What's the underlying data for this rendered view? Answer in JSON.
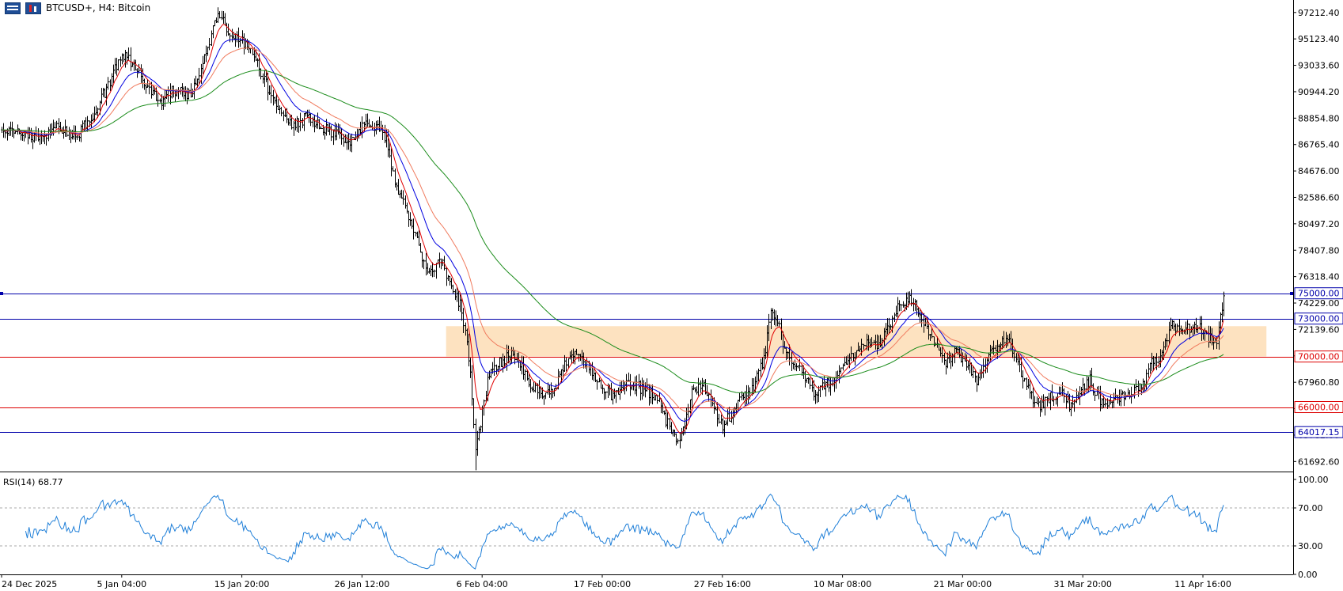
{
  "header": {
    "title": "BTCUSD+, H4:  Bitcoin",
    "menu_icon": "menu-icon",
    "trade_icon": "one-click-trading-icon"
  },
  "chart_data": {
    "type": "candlestick",
    "symbol": "BTCUSD+",
    "timeframe": "H4",
    "description": "Bitcoin",
    "price_axis": {
      "ylim": [
        60900,
        98200
      ],
      "ticks": [
        "97212.40",
        "95123.40",
        "93033.60",
        "90944.20",
        "88854.80",
        "86765.40",
        "84676.00",
        "82586.60",
        "80497.20",
        "78407.80",
        "76318.40",
        "74229.00",
        "72139.60",
        "70050.20",
        "67960.80",
        "65871.40",
        "63782.00",
        "61692.60"
      ]
    },
    "time_axis": {
      "labels": [
        "24 Dec 2025",
        "5 Jan 04:00",
        "15 Jan 20:00",
        "26 Jan 12:00",
        "6 Feb 04:00",
        "17 Feb 00:00",
        "27 Feb 16:00",
        "10 Mar 08:00",
        "21 Mar 00:00",
        "31 Mar 20:00",
        "11 Apr 16:00"
      ],
      "bar_index": [
        0,
        70,
        140,
        210,
        280,
        350,
        420,
        490,
        560,
        630,
        700
      ]
    },
    "price_path": [
      [
        0,
        87800
      ],
      [
        12,
        87600
      ],
      [
        22,
        87200
      ],
      [
        32,
        88000
      ],
      [
        44,
        87500
      ],
      [
        55,
        89500
      ],
      [
        62,
        91500
      ],
      [
        70,
        94000
      ],
      [
        78,
        92800
      ],
      [
        84,
        91300
      ],
      [
        92,
        90200
      ],
      [
        100,
        91100
      ],
      [
        108,
        90600
      ],
      [
        114,
        91600
      ],
      [
        120,
        94500
      ],
      [
        126,
        97200
      ],
      [
        132,
        95600
      ],
      [
        138,
        95000
      ],
      [
        146,
        94300
      ],
      [
        152,
        92200
      ],
      [
        158,
        90200
      ],
      [
        164,
        89200
      ],
      [
        170,
        88200
      ],
      [
        178,
        89000
      ],
      [
        186,
        88100
      ],
      [
        194,
        87700
      ],
      [
        202,
        86800
      ],
      [
        210,
        88200
      ],
      [
        217,
        88300
      ],
      [
        224,
        87200
      ],
      [
        229,
        83800
      ],
      [
        235,
        81800
      ],
      [
        241,
        79400
      ],
      [
        246,
        77600
      ],
      [
        250,
        76600
      ],
      [
        256,
        77700
      ],
      [
        262,
        75500
      ],
      [
        268,
        73800
      ],
      [
        273,
        69000
      ],
      [
        276,
        62900
      ],
      [
        279,
        64800
      ],
      [
        284,
        68800
      ],
      [
        290,
        69500
      ],
      [
        296,
        70200
      ],
      [
        302,
        69400
      ],
      [
        308,
        67700
      ],
      [
        316,
        66700
      ],
      [
        322,
        67400
      ],
      [
        328,
        69400
      ],
      [
        334,
        70200
      ],
      [
        340,
        69500
      ],
      [
        348,
        67800
      ],
      [
        356,
        66800
      ],
      [
        362,
        67900
      ],
      [
        370,
        67600
      ],
      [
        376,
        67300
      ],
      [
        382,
        66600
      ],
      [
        388,
        64700
      ],
      [
        393,
        63300
      ],
      [
        398,
        64500
      ],
      [
        402,
        67400
      ],
      [
        408,
        67700
      ],
      [
        414,
        66500
      ],
      [
        420,
        64500
      ],
      [
        426,
        65700
      ],
      [
        432,
        66800
      ],
      [
        438,
        67700
      ],
      [
        444,
        69800
      ],
      [
        448,
        73200
      ],
      [
        452,
        72900
      ],
      [
        456,
        70600
      ],
      [
        462,
        69300
      ],
      [
        468,
        68400
      ],
      [
        474,
        67000
      ],
      [
        480,
        67800
      ],
      [
        486,
        68300
      ],
      [
        492,
        69400
      ],
      [
        498,
        70200
      ],
      [
        504,
        71500
      ],
      [
        510,
        70600
      ],
      [
        516,
        72300
      ],
      [
        522,
        73800
      ],
      [
        528,
        74700
      ],
      [
        533,
        74100
      ],
      [
        538,
        72600
      ],
      [
        544,
        70900
      ],
      [
        550,
        69300
      ],
      [
        556,
        70400
      ],
      [
        562,
        69600
      ],
      [
        568,
        68200
      ],
      [
        574,
        69600
      ],
      [
        580,
        71100
      ],
      [
        586,
        71400
      ],
      [
        592,
        69400
      ],
      [
        598,
        67300
      ],
      [
        604,
        66000
      ],
      [
        610,
        66600
      ],
      [
        616,
        67300
      ],
      [
        622,
        66200
      ],
      [
        628,
        67000
      ],
      [
        634,
        68100
      ],
      [
        640,
        66500
      ],
      [
        646,
        66300
      ],
      [
        652,
        66600
      ],
      [
        658,
        67100
      ],
      [
        664,
        67300
      ],
      [
        670,
        69400
      ],
      [
        676,
        70200
      ],
      [
        682,
        72400
      ],
      [
        688,
        71600
      ],
      [
        694,
        72600
      ],
      [
        700,
        72100
      ],
      [
        705,
        71200
      ],
      [
        708,
        71300
      ],
      [
        712,
        74800
      ]
    ],
    "moving_averages": [
      {
        "period": 8,
        "color": "#e00000"
      },
      {
        "period": 20,
        "color": "#0000e0"
      },
      {
        "period": 36,
        "color": "#f07b5e"
      },
      {
        "period": 100,
        "color": "#1b8c1b"
      }
    ],
    "levels": [
      {
        "price": 75000.0,
        "label": "75000.00",
        "color": "#0000aa"
      },
      {
        "price": 73000.0,
        "label": "73000.00",
        "color": "#0000aa"
      },
      {
        "price": 70000.0,
        "label": "70000.00",
        "color": "#dd0000"
      },
      {
        "price": 66000.0,
        "label": "66000.00",
        "color": "#dd0000"
      },
      {
        "price": 64017.15,
        "label": "64017.15",
        "color": "#0000aa"
      }
    ],
    "zone": {
      "price_from": 70000,
      "price_to": 72400,
      "bar_from": 259,
      "bar_to": 737,
      "color": "#fde2c0"
    },
    "rsi": {
      "label": "RSI(14) 68.77",
      "period": 14,
      "current": 68.77,
      "levels": [
        70,
        30
      ],
      "ticks": [
        "100.00",
        "70.00",
        "30.00",
        "0.00"
      ],
      "ylim": [
        0,
        100
      ],
      "color": "#1f7fd8"
    }
  }
}
